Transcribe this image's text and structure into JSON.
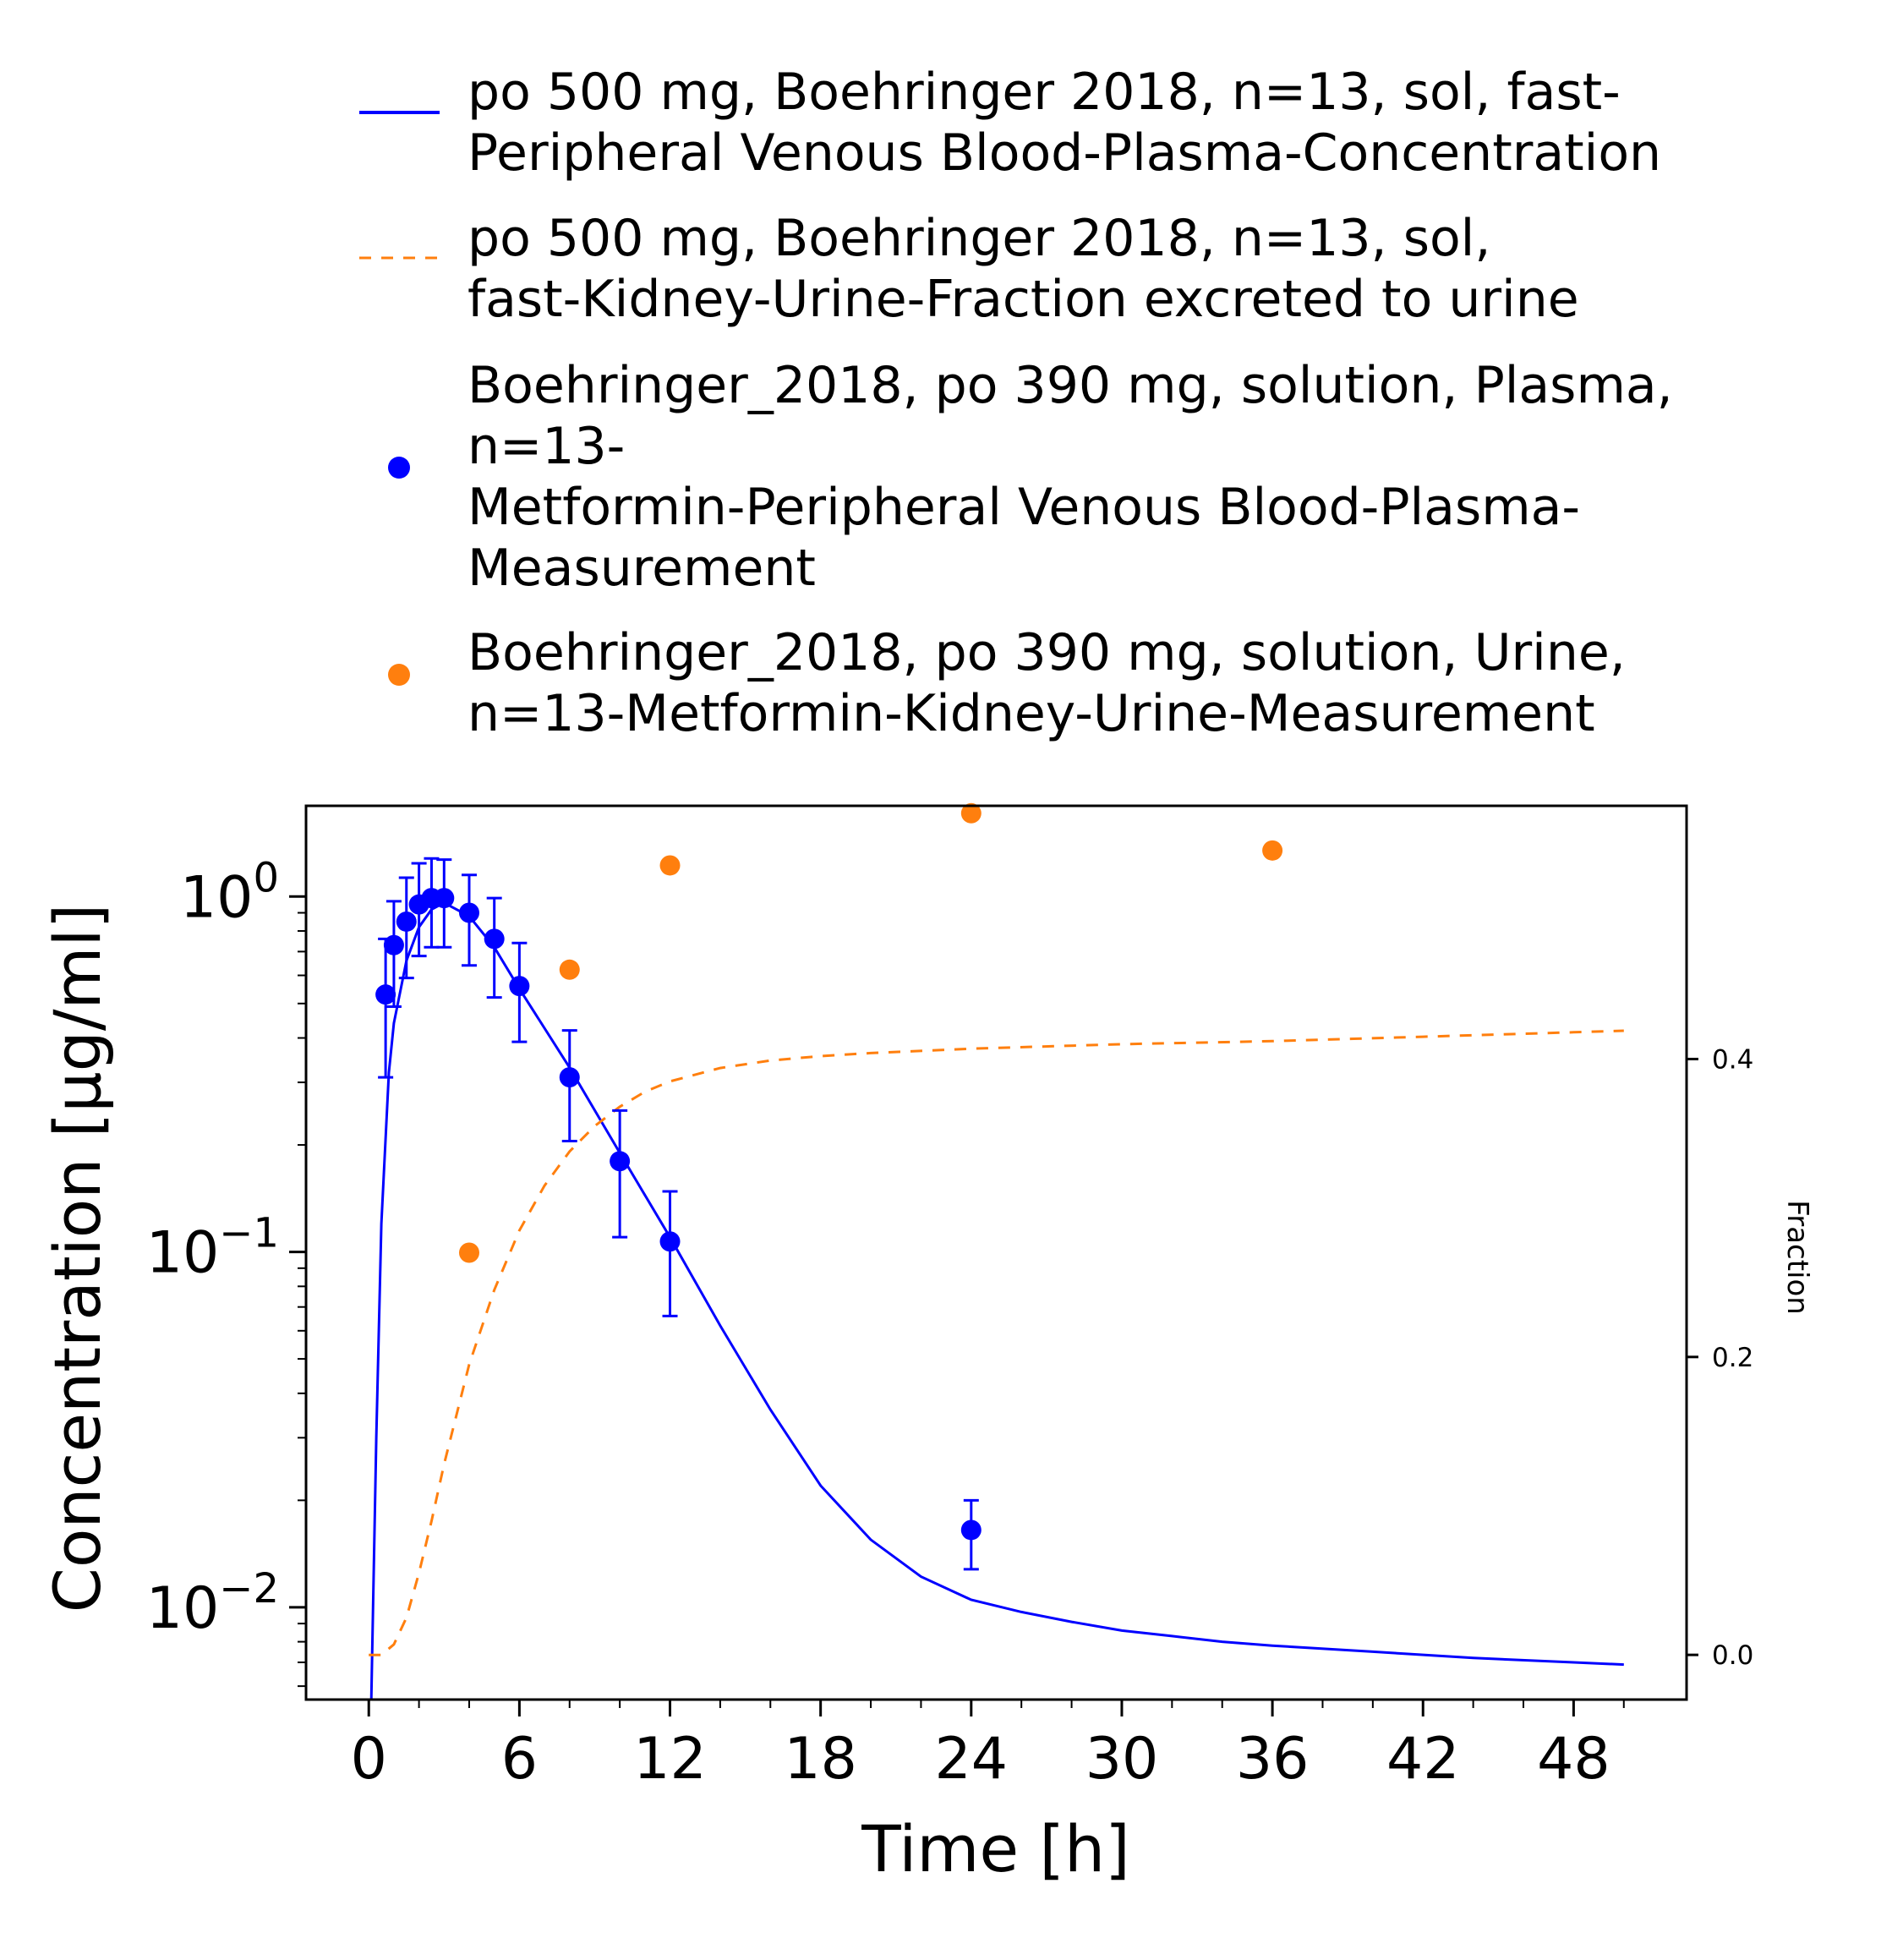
{
  "legend": [
    {
      "text": "po 500 mg, Boehringer 2018, n=13, sol, fast-\nPeripheral Venous Blood-Plasma-Concentration",
      "style": "line",
      "color": "#0000ff"
    },
    {
      "text": "po 500 mg, Boehringer 2018, n=13, sol,\nfast-Kidney-Urine-Fraction excreted to urine",
      "style": "dashed",
      "color": "#ff7f0e"
    },
    {
      "text": "Boehringer_2018, po 390 mg, solution, Plasma,\nn=13-\nMetformin-Peripheral Venous Blood-Plasma-\nMeasurement",
      "style": "marker",
      "color": "#0000ff"
    },
    {
      "text": "Boehringer_2018, po 390 mg, solution, Urine,\nn=13-Metformin-Kidney-Urine-Measurement",
      "style": "marker",
      "color": "#ff7f0e"
    }
  ],
  "chart_data": {
    "type": "line",
    "xlabel": "Time [h]",
    "ylabel": "Concentration [µg/ml]",
    "y2label": "Fraction",
    "xlim": [
      -2.5,
      52.5
    ],
    "xticks": [
      "0",
      "6",
      "12",
      "18",
      "24",
      "30",
      "36",
      "42",
      "48"
    ],
    "ylim": [
      0.0055,
      1.8
    ],
    "yscale": "log",
    "yticks": [
      {
        "value": 1,
        "base": "10",
        "exp": "0"
      },
      {
        "value": 0.1,
        "base": "10",
        "exp": "−1"
      },
      {
        "value": 0.01,
        "base": "10",
        "exp": "−2"
      }
    ],
    "y2lim": [
      -0.03,
      0.57
    ],
    "y2ticks": [
      "0.0",
      "0.2",
      "0.4"
    ],
    "grid": false,
    "series": [
      {
        "name": "po 500 mg, Boehringer 2018, n=13, sol, fast-Peripheral Venous Blood-Plasma-Concentration",
        "axis": "left",
        "style": "solid",
        "color": "#0000ff",
        "x": [
          0.1,
          0.3,
          0.5,
          0.8,
          1.0,
          1.5,
          2.0,
          2.5,
          3.0,
          4.0,
          5.0,
          6.0,
          8.0,
          10.0,
          12.0,
          14.0,
          16.0,
          18.0,
          20.0,
          22.0,
          24.0,
          26.0,
          28.0,
          30.0,
          32.0,
          34.0,
          36.0,
          40.0,
          44.0,
          48.0,
          50.0
        ],
        "y": [
          0.0055,
          0.03,
          0.12,
          0.32,
          0.44,
          0.66,
          0.82,
          0.92,
          0.96,
          0.88,
          0.72,
          0.55,
          0.33,
          0.19,
          0.11,
          0.062,
          0.036,
          0.022,
          0.0155,
          0.0122,
          0.0105,
          0.0097,
          0.0091,
          0.0086,
          0.0083,
          0.008,
          0.0078,
          0.0075,
          0.0072,
          0.007,
          0.0069
        ]
      },
      {
        "name": "po 500 mg, Boehringer 2018, n=13, sol, fast-Kidney-Urine-Fraction excreted to urine",
        "axis": "right",
        "style": "dashed",
        "color": "#ff7f0e",
        "x": [
          0,
          0.5,
          1.0,
          1.5,
          2.0,
          2.5,
          3.0,
          4.0,
          5.0,
          6.0,
          7.0,
          8.0,
          9.0,
          10.0,
          11.0,
          12.0,
          14.0,
          16.0,
          18.0,
          20.0,
          24.0,
          30.0,
          36.0,
          42.0,
          48.0,
          50.0
        ],
        "y": [
          0.0,
          0.0,
          0.007,
          0.025,
          0.055,
          0.09,
          0.128,
          0.195,
          0.245,
          0.285,
          0.315,
          0.338,
          0.355,
          0.368,
          0.378,
          0.385,
          0.394,
          0.399,
          0.402,
          0.404,
          0.407,
          0.41,
          0.412,
          0.415,
          0.418,
          0.419
        ]
      },
      {
        "name": "Boehringer_2018, po 390 mg, solution, Plasma, n=13-Metformin-Peripheral Venous Blood-Plasma-Measurement",
        "axis": "left",
        "style": "marker",
        "color": "#0000ff",
        "x": [
          0.67,
          1.0,
          1.5,
          2.0,
          2.5,
          3.0,
          4.0,
          5.0,
          6.0,
          8.0,
          10.0,
          12.0,
          24.0
        ],
        "y": [
          0.53,
          0.73,
          0.85,
          0.95,
          0.99,
          0.99,
          0.9,
          0.76,
          0.56,
          0.31,
          0.18,
          0.107,
          0.0165
        ],
        "ylow": [
          0.31,
          0.49,
          0.59,
          0.68,
          0.72,
          0.72,
          0.64,
          0.52,
          0.39,
          0.205,
          0.11,
          0.066,
          0.0128
        ],
        "yhigh": [
          0.76,
          0.97,
          1.13,
          1.24,
          1.28,
          1.27,
          1.15,
          0.99,
          0.74,
          0.42,
          0.25,
          0.148,
          0.02
        ]
      },
      {
        "name": "Boehringer_2018, po 390 mg, solution, Urine, n=13-Metformin-Kidney-Urine-Measurement",
        "axis": "right",
        "style": "marker",
        "color": "#ff7f0e",
        "x": [
          4.0,
          8.0,
          12.0,
          24.0,
          36.0
        ],
        "y": [
          0.27,
          0.46,
          0.53,
          0.565,
          0.54
        ]
      }
    ]
  }
}
